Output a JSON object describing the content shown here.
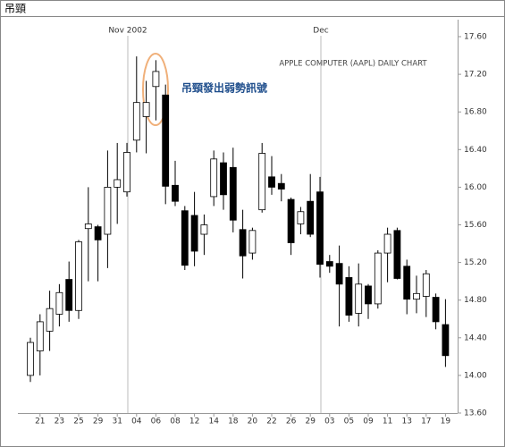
{
  "chart_data": {
    "type": "candlestick",
    "title": "吊頸",
    "annotation": "APPLE COMPUTER (AAPL) DAILY CHART",
    "signal_note": "吊頸發出弱勢訊號",
    "month_markers": [
      {
        "label": "Nov 2002",
        "category_index": 10
      },
      {
        "label": "Dec",
        "category_index": 30
      }
    ],
    "categories": [
      null,
      "21",
      null,
      "23",
      null,
      "25",
      null,
      "29",
      null,
      "31",
      null,
      "04",
      null,
      "06",
      null,
      "08",
      null,
      "12",
      null,
      "14",
      null,
      "18",
      null,
      "20",
      null,
      "22",
      null,
      "26",
      null,
      "29",
      null,
      "03",
      null,
      "05",
      null,
      "09",
      null,
      "11",
      null,
      "13",
      null,
      "17",
      null,
      "19"
    ],
    "open": [
      14.0,
      14.26,
      14.47,
      14.65,
      15.02,
      14.69,
      15.56,
      15.58,
      15.5,
      16.0,
      15.95,
      16.5,
      16.75,
      17.07,
      16.98,
      16.02,
      15.75,
      15.7,
      15.5,
      15.9,
      16.26,
      16.21,
      15.55,
      15.3,
      15.76,
      16.11,
      16.04,
      15.87,
      15.61,
      15.85,
      15.95,
      15.21,
      15.19,
      15.04,
      14.66,
      14.95,
      14.76,
      15.3,
      15.54,
      15.16,
      14.81,
      14.84,
      14.83,
      14.54
    ],
    "high": [
      14.4,
      14.65,
      14.9,
      14.97,
      15.21,
      15.44,
      16.0,
      15.6,
      16.39,
      16.47,
      16.47,
      17.39,
      17.13,
      17.35,
      17.09,
      16.28,
      15.8,
      15.95,
      15.71,
      16.39,
      16.37,
      16.42,
      15.76,
      15.57,
      16.47,
      16.33,
      16.14,
      15.89,
      15.79,
      16.14,
      16.11,
      15.28,
      15.38,
      15.16,
      15.19,
      14.97,
      15.33,
      15.57,
      15.57,
      15.23,
      15.06,
      15.12,
      14.87,
      14.81
    ],
    "low": [
      13.93,
      14.0,
      14.26,
      14.52,
      14.57,
      14.6,
      15.0,
      15.0,
      15.14,
      15.61,
      15.9,
      16.37,
      16.36,
      16.71,
      15.82,
      15.8,
      15.12,
      15.16,
      15.28,
      15.8,
      15.76,
      15.52,
      15.03,
      15.23,
      15.73,
      15.92,
      15.85,
      15.28,
      15.5,
      15.47,
      15.04,
      15.09,
      14.52,
      14.57,
      14.52,
      14.6,
      14.71,
      14.99,
      15.02,
      14.65,
      14.66,
      14.62,
      14.49,
      14.09
    ],
    "close": [
      14.35,
      14.57,
      14.71,
      14.88,
      14.69,
      15.42,
      15.61,
      15.44,
      16.0,
      16.08,
      16.37,
      16.9,
      16.9,
      17.23,
      16.01,
      15.85,
      15.17,
      15.32,
      15.6,
      16.3,
      15.92,
      15.65,
      15.27,
      15.54,
      16.36,
      16.0,
      15.98,
      15.41,
      15.74,
      15.5,
      15.18,
      15.16,
      14.97,
      14.64,
      14.97,
      14.76,
      15.3,
      15.5,
      15.03,
      14.81,
      14.87,
      15.08,
      14.57,
      14.21
    ],
    "up_color": "#ffffff",
    "down_color": "#000000",
    "annotation_color": "#1f4e8c",
    "ylim": [
      13.6,
      17.6
    ],
    "yticks": [
      {
        "value": 13.6,
        "label": "13.60"
      },
      {
        "value": 14.0,
        "label": "14.00"
      },
      {
        "value": 14.4,
        "label": "14.40"
      },
      {
        "value": 14.8,
        "label": "14.80"
      },
      {
        "value": 15.2,
        "label": "15.20"
      },
      {
        "value": 15.6,
        "label": "15.60"
      },
      {
        "value": 16.0,
        "label": "16.00"
      },
      {
        "value": 16.4,
        "label": "16.40"
      },
      {
        "value": 16.8,
        "label": "16.80"
      },
      {
        "value": 17.2,
        "label": "17.20"
      },
      {
        "value": 17.6,
        "label": "17.60"
      }
    ]
  }
}
